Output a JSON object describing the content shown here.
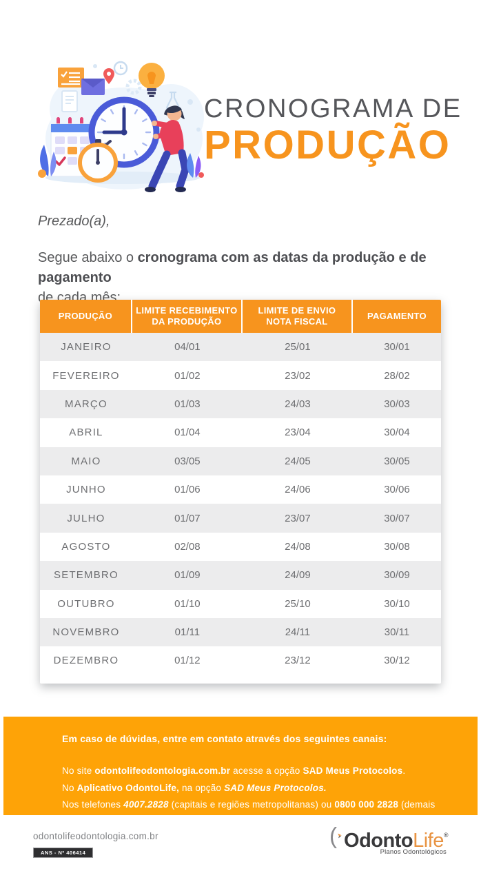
{
  "colors": {
    "brand_orange": "#F7941E",
    "contact_box_orange": "#FEA307",
    "title_gray": "#55565A",
    "body_text_gray": "#58595B",
    "table_text_gray": "#6D6E71",
    "row_alt_gray": "#ECECED",
    "logo_dark": "#39393B",
    "logo_orange": "#E89342"
  },
  "header": {
    "title_line1": "CRONOGRAMA DE",
    "title_line2": "PRODUÇÃO"
  },
  "intro": {
    "greeting": "Prezado(a),",
    "body_prefix": "Segue abaixo o ",
    "body_bold": "cronograma com as datas da produção e de pagamento",
    "body_suffix": "de cada mês:"
  },
  "table": {
    "columns": [
      {
        "lines": [
          "PRODUÇÃO"
        ]
      },
      {
        "lines": [
          "LIMITE RECEBIMENTO",
          "DA PRODUÇÃO"
        ]
      },
      {
        "lines": [
          "LIMITE DE ENVIO",
          "NOTA FISCAL"
        ]
      },
      {
        "lines": [
          "PAGAMENTO"
        ]
      }
    ],
    "rows": [
      [
        "JANEIRO",
        "04/01",
        "25/01",
        "30/01"
      ],
      [
        "FEVEREIRO",
        "01/02",
        "23/02",
        "28/02"
      ],
      [
        "MARÇO",
        "01/03",
        "24/03",
        "30/03"
      ],
      [
        "ABRIL",
        "01/04",
        "23/04",
        "30/04"
      ],
      [
        "MAIO",
        "03/05",
        "24/05",
        "30/05"
      ],
      [
        "JUNHO",
        "01/06",
        "24/06",
        "30/06"
      ],
      [
        "JULHO",
        "01/07",
        "23/07",
        "30/07"
      ],
      [
        "AGOSTO",
        "02/08",
        "24/08",
        "30/08"
      ],
      [
        "SETEMBRO",
        "01/09",
        "24/09",
        "30/09"
      ],
      [
        "OUTUBRO",
        "01/10",
        "25/10",
        "30/10"
      ],
      [
        "NOVEMBRO",
        "01/11",
        "24/11",
        "30/11"
      ],
      [
        "DEZEMBRO",
        "01/12",
        "23/12",
        "30/12"
      ]
    ]
  },
  "contact": {
    "heading": "Em caso de dúvidas, entre em contato através dos seguintes canais:",
    "lines": [
      [
        {
          "t": "No site ",
          "b": false
        },
        {
          "t": "odontolifeodontologia.com.br",
          "b": true
        },
        {
          "t": " acesse a opção ",
          "b": false
        },
        {
          "t": "SAD Meus Protocolos",
          "b": true
        },
        {
          "t": ".",
          "b": false
        }
      ],
      [
        {
          "t": "No ",
          "b": false
        },
        {
          "t": "Aplicativo OdontoLife,",
          "b": true
        },
        {
          "t": " na opção ",
          "b": false
        },
        {
          "t": "SAD Meus Protocolos.",
          "b": true,
          "i": true
        }
      ],
      [
        {
          "t": "Nos telefones ",
          "b": false
        },
        {
          "t": "4007.2828",
          "b": true,
          "i": true
        },
        {
          "t": " (capitais e regiões metropolitanas) ou ",
          "b": false
        },
        {
          "t": "0800 000 2828",
          "b": true
        },
        {
          "t": " (demais regiões).",
          "b": false
        }
      ]
    ]
  },
  "footer": {
    "website": "odontolifeodontologia.com.br",
    "ans_registration": "ANS - Nº 406414",
    "logo": {
      "paren": "(",
      "word_dark": "Odonto",
      "word_orange": "Life",
      "registered": "®",
      "tagline": "Planos Odontológicos"
    }
  }
}
